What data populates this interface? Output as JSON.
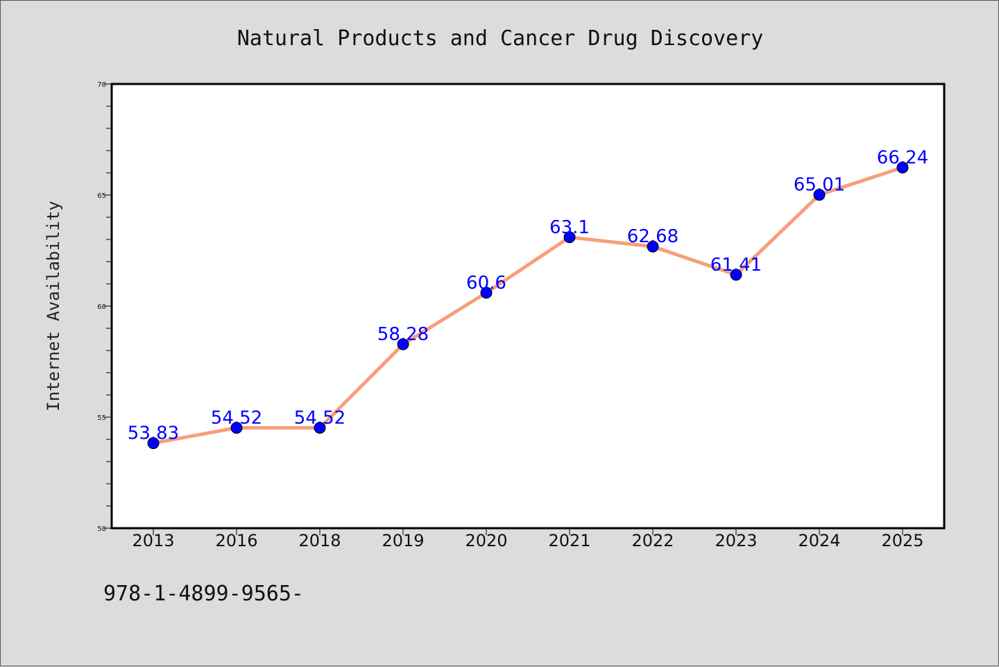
{
  "chart_data": {
    "type": "line",
    "title": "Natural Products and Cancer Drug Discovery",
    "xlabel": "",
    "ylabel": "Internet Availability",
    "categories": [
      "2013",
      "2016",
      "2018",
      "2019",
      "2020",
      "2021",
      "2022",
      "2023",
      "2024",
      "2025"
    ],
    "series": [
      {
        "values": [
          53.83,
          54.52,
          54.52,
          58.28,
          60.6,
          63.1,
          62.68,
          61.41,
          65.01,
          66.24
        ],
        "labels": [
          "53.83",
          "54.52",
          "54.52",
          "58.28",
          "60.6",
          "63.1",
          "62.68",
          "61.41",
          "65.01",
          "66.24"
        ],
        "line_color": "#f4a07a",
        "marker_color": "#0000ff"
      }
    ],
    "ylim": [
      50,
      70
    ],
    "yticks": [
      "50",
      "55",
      "60",
      "65",
      "70"
    ],
    "grid": false,
    "legend": "none"
  },
  "footer": {
    "text": "978-1-4899-9565-"
  }
}
